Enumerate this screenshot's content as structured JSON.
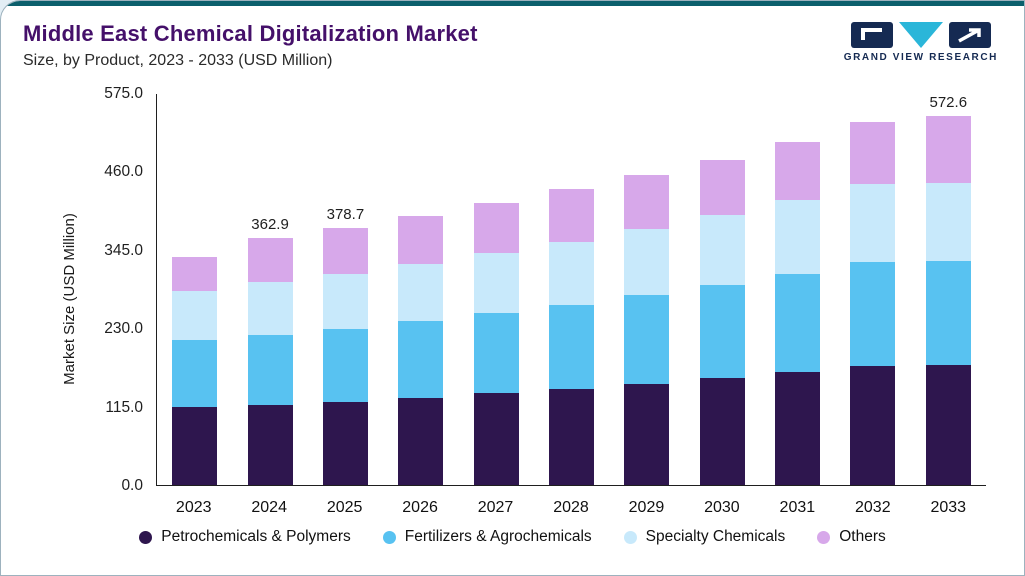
{
  "page": {
    "title": "Middle East Chemical Digitalization Market",
    "subtitle": "Size, by Product, 2023 - 2033 (USD Million)",
    "brand": "GRAND VIEW RESEARCH"
  },
  "colors": {
    "accent_bar": "#0c5f6c",
    "title": "#45106a",
    "logo_navy": "#152a52",
    "logo_teal": "#2ab6d9"
  },
  "chart_data": {
    "type": "bar",
    "stacked": true,
    "title": "Middle East Chemical Digitalization Market",
    "subtitle": "Size, by Product, 2023 - 2033 (USD Million)",
    "xlabel": "",
    "ylabel": "Market Size (USD Million)",
    "ylim": [
      0,
      575
    ],
    "yticks": [
      575.0,
      460.0,
      345.0,
      230.0,
      115.0,
      0.0
    ],
    "grid": false,
    "legend_position": "bottom",
    "categories": [
      "2023",
      "2024",
      "2025",
      "2026",
      "2027",
      "2028",
      "2029",
      "2030",
      "2031",
      "2032",
      "2033"
    ],
    "series": [
      {
        "name": "Petrochemicals & Polymers",
        "color": "#2e164e",
        "values": [
          115,
          118,
          122,
          128,
          135,
          141,
          149,
          157,
          166,
          175,
          186
        ]
      },
      {
        "name": "Fertilizers & Agrochemicals",
        "color": "#58c2f1",
        "values": [
          98,
          103,
          108,
          113,
          118,
          124,
          130,
          137,
          145,
          153,
          162
        ]
      },
      {
        "name": "Specialty Chemicals",
        "color": "#c8e9fb",
        "values": [
          72,
          77,
          80,
          84,
          88,
          93,
          98,
          103,
          108,
          114,
          121
        ]
      },
      {
        "name": "Others",
        "color": "#d7a8ea",
        "values": [
          50,
          64.9,
          68.7,
          71,
          74,
          77,
          79,
          81,
          85,
          92,
          103.6
        ]
      }
    ],
    "totals": [
      335,
      362.9,
      378.7,
      396,
      415,
      435,
      456,
      478,
      504,
      534,
      572.6
    ],
    "total_labels": [
      "",
      "362.9",
      "378.7",
      "",
      "",
      "",
      "",
      "",
      "",
      "",
      "572.6"
    ]
  }
}
